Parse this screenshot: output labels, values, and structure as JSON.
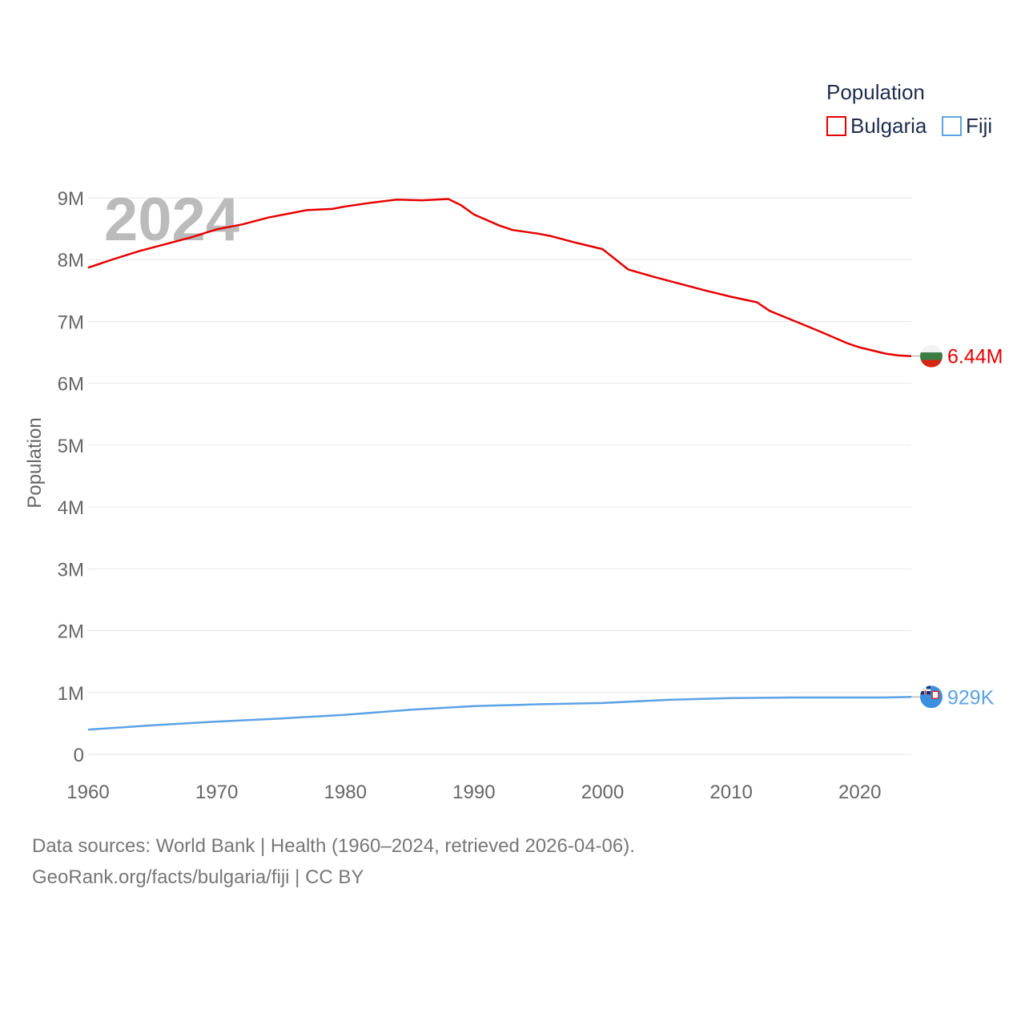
{
  "chart_data": {
    "type": "line",
    "watermark_year": "2024",
    "ylabel": "Population",
    "ylim": [
      0,
      9000000
    ],
    "xlim": [
      1960,
      2024
    ],
    "y_ticks": [
      0,
      1000000,
      2000000,
      3000000,
      4000000,
      5000000,
      6000000,
      7000000,
      8000000,
      9000000
    ],
    "y_tick_labels": [
      "0",
      "1M",
      "2M",
      "3M",
      "4M",
      "5M",
      "6M",
      "7M",
      "8M",
      "9M"
    ],
    "x_ticks": [
      1960,
      1970,
      1980,
      1990,
      2000,
      2010,
      2020
    ],
    "x_tick_labels": [
      "1960",
      "1970",
      "1980",
      "1990",
      "2000",
      "2010",
      "2020"
    ],
    "grid": true,
    "legend": {
      "title": "Population",
      "position": "top-right"
    },
    "series": [
      {
        "name": "Bulgaria",
        "color": "#e60000",
        "end_label": "6.44M",
        "icon": "bulgaria-flag-icon",
        "x": [
          1960,
          1962,
          1964,
          1966,
          1968,
          1970,
          1972,
          1974,
          1976,
          1977,
          1979,
          1980,
          1982,
          1984,
          1986,
          1988,
          1989,
          1990,
          1992,
          1993,
          1995,
          1996,
          1998,
          2000,
          2002,
          2004,
          2006,
          2008,
          2010,
          2012,
          2013,
          2015,
          2017,
          2019,
          2020,
          2022,
          2023,
          2024
        ],
        "y": [
          7870000,
          8010000,
          8140000,
          8250000,
          8360000,
          8490000,
          8570000,
          8680000,
          8760000,
          8800000,
          8820000,
          8860000,
          8920000,
          8970000,
          8960000,
          8980000,
          8880000,
          8730000,
          8550000,
          8480000,
          8420000,
          8380000,
          8270000,
          8170000,
          7840000,
          7720000,
          7610000,
          7500000,
          7400000,
          7310000,
          7170000,
          7000000,
          6830000,
          6650000,
          6580000,
          6480000,
          6450000,
          6440000
        ]
      },
      {
        "name": "Fiji",
        "color": "#5ba2e6",
        "end_label": "929K",
        "icon": "fiji-flag-icon",
        "x": [
          1960,
          1965,
          1970,
          1975,
          1980,
          1985,
          1990,
          1995,
          2000,
          2005,
          2010,
          2015,
          2020,
          2022,
          2024
        ],
        "y": [
          400000,
          470000,
          530000,
          580000,
          640000,
          720000,
          780000,
          810000,
          830000,
          880000,
          910000,
          920000,
          920000,
          920000,
          929000
        ]
      }
    ]
  },
  "footer": {
    "sources_line": "Data sources: World Bank | Health (1960–2024, retrieved 2026-04-06).",
    "attribution_line": "GeoRank.org/facts/bulgaria/fiji | CC BY"
  }
}
